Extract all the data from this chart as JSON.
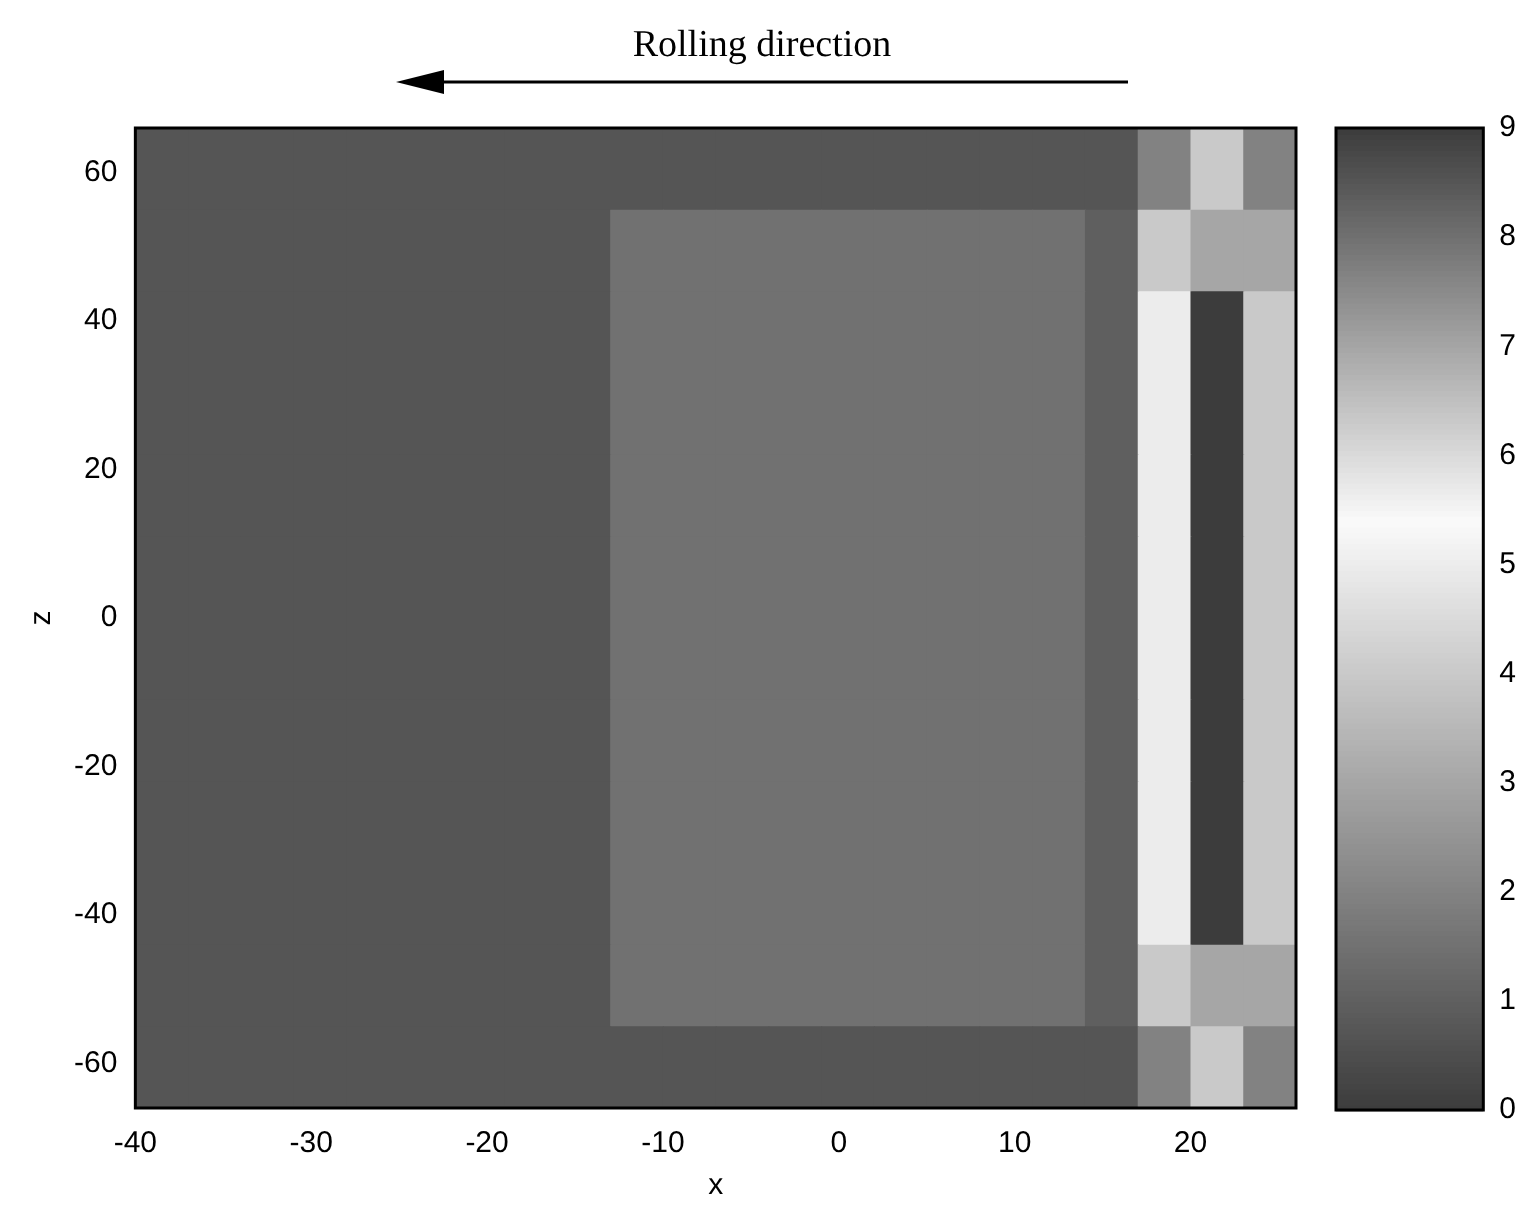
{
  "chart_data": {
    "type": "heatmap",
    "annotations": [
      "Rolling direction"
    ],
    "xlabel": "x",
    "ylabel": "z",
    "xlim": [
      -40,
      26
    ],
    "xticks": [
      -40,
      -30,
      -20,
      -10,
      0,
      10,
      20
    ],
    "ylim": [
      -66,
      66
    ],
    "yticks": [
      -60,
      -40,
      -20,
      0,
      20,
      40,
      60
    ],
    "clim": [
      0,
      9
    ],
    "cticks": [
      0,
      1,
      2,
      3,
      4,
      5,
      6,
      7,
      8,
      9
    ],
    "cells": [
      [
        0.7,
        0.7,
        0.7,
        0.7,
        0.7,
        0.7,
        0.7,
        0.7,
        0.7,
        0.7,
        0.7,
        0.7,
        0.7,
        0.7,
        0.7,
        0.7,
        0.7,
        0.7,
        0.7,
        2,
        4,
        2
      ],
      [
        0.7,
        0.7,
        0.7,
        0.7,
        0.7,
        0.7,
        0.7,
        0.7,
        0.7,
        1.5,
        1.5,
        1.5,
        1.5,
        1.5,
        1.5,
        1.5,
        1.5,
        1.5,
        1,
        4,
        7,
        3
      ],
      [
        0.7,
        0.7,
        0.7,
        0.7,
        0.7,
        0.7,
        0.7,
        0.7,
        0.7,
        1.5,
        1.5,
        1.5,
        1.5,
        1.5,
        1.5,
        1.5,
        1.5,
        1.5,
        1,
        5,
        9,
        4
      ],
      [
        0.7,
        0.7,
        0.7,
        0.7,
        0.7,
        0.7,
        0.7,
        0.7,
        0.7,
        1.5,
        1.5,
        1.5,
        1.5,
        1.5,
        1.5,
        1.5,
        1.5,
        1.5,
        1,
        5,
        9,
        4
      ],
      [
        0.7,
        0.7,
        0.7,
        0.7,
        0.7,
        0.7,
        0.7,
        0.7,
        0.7,
        1.5,
        1.5,
        1.5,
        1.5,
        1.5,
        1.5,
        1.5,
        1.5,
        1.5,
        1,
        5,
        9,
        4
      ],
      [
        0.7,
        0.7,
        0.7,
        0.7,
        0.7,
        0.7,
        0.7,
        0.7,
        0.7,
        1.5,
        1.5,
        1.5,
        1.5,
        1.5,
        1.5,
        1.5,
        1.5,
        1.5,
        1,
        5,
        9,
        4
      ],
      [
        0.7,
        0.7,
        0.7,
        0.7,
        0.7,
        0.7,
        0.7,
        0.7,
        0.7,
        1.5,
        1.5,
        1.5,
        1.5,
        1.5,
        1.5,
        1.5,
        1.5,
        1.5,
        1,
        5,
        9,
        4
      ],
      [
        0.7,
        0.7,
        0.7,
        0.7,
        0.7,
        0.7,
        0.7,
        0.7,
        0.7,
        1.5,
        1.5,
        1.5,
        1.5,
        1.5,
        1.5,
        1.5,
        1.5,
        1.5,
        1,
        5,
        9,
        4
      ],
      [
        0.7,
        0.7,
        0.7,
        0.7,
        0.7,
        0.7,
        0.7,
        0.7,
        0.7,
        1.5,
        1.5,
        1.5,
        1.5,
        1.5,
        1.5,
        1.5,
        1.5,
        1.5,
        1,
        5,
        9,
        4
      ],
      [
        0.7,
        0.7,
        0.7,
        0.7,
        0.7,
        0.7,
        0.7,
        0.7,
        0.7,
        1.5,
        1.5,
        1.5,
        1.5,
        1.5,
        1.5,
        1.5,
        1.5,
        1.5,
        1,
        5,
        9,
        4
      ],
      [
        0.7,
        0.7,
        0.7,
        0.7,
        0.7,
        0.7,
        0.7,
        0.7,
        0.7,
        1.5,
        1.5,
        1.5,
        1.5,
        1.5,
        1.5,
        1.5,
        1.5,
        1.5,
        1,
        4,
        7,
        3
      ],
      [
        0.7,
        0.7,
        0.7,
        0.7,
        0.7,
        0.7,
        0.7,
        0.7,
        0.7,
        0.7,
        0.7,
        0.7,
        0.7,
        0.7,
        0.7,
        0.7,
        0.7,
        0.7,
        0.7,
        2,
        4,
        2
      ]
    ]
  }
}
